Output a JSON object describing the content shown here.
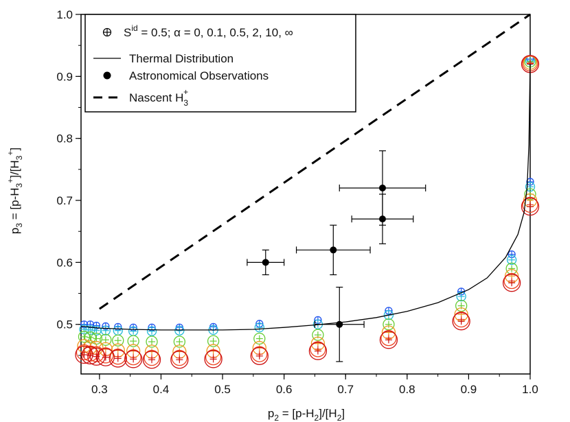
{
  "chart_data": {
    "type": "scatter",
    "xlabel": {
      "main": "p",
      "sub": "2",
      "rest": " = [p-H",
      "sub2": "2",
      "tail": "]/[H",
      "sub3": "2",
      "end": "]"
    },
    "ylabel": {
      "main": "p",
      "sub": "3",
      "rest": " = [p-H",
      "sub2": "3",
      "sup2": "+",
      "tail": "]/[H",
      "sub3": "3",
      "sup3": "+",
      "end": "]"
    },
    "xlim": [
      0.27,
      1.0
    ],
    "ylim": [
      0.42,
      1.0
    ],
    "xticks": [
      0.3,
      0.4,
      0.5,
      0.6,
      0.7,
      0.8,
      0.9,
      1.0
    ],
    "xtick_labels": [
      "0.3",
      "0.4",
      "0.5",
      "0.6",
      "0.7",
      "0.8",
      "0.9",
      "1.0"
    ],
    "yticks": [
      0.5,
      0.6,
      0.7,
      0.8,
      0.9,
      1.0
    ],
    "ytick_labels": [
      "0.5",
      "0.6",
      "0.7",
      "0.8",
      "0.9",
      "1.0"
    ],
    "legend": {
      "placement": "top-left",
      "entries": [
        {
          "kind": "circle-plus",
          "label_prefix": "S",
          "label_sup": "id",
          "label_rest": " = 0.5; α = 0, 0.1, 0.5, 2, 10, ∞"
        },
        {
          "kind": "line",
          "label": "Thermal Distribution"
        },
        {
          "kind": "dot",
          "label": "Astronomical Observations"
        },
        {
          "kind": "dashed",
          "label_prefix": "Nascent H",
          "label_sub": "3",
          "label_sup": "+"
        }
      ]
    },
    "series": [
      {
        "name": "Thermal Distribution",
        "style": "solid",
        "color": "#000000",
        "x": [
          0.27,
          0.3,
          0.35,
          0.4,
          0.45,
          0.5,
          0.55,
          0.6,
          0.65,
          0.7,
          0.75,
          0.8,
          0.85,
          0.9,
          0.93,
          0.96,
          0.98,
          0.99,
          0.995,
          0.998,
          1.0
        ],
        "y": [
          0.497,
          0.494,
          0.492,
          0.491,
          0.491,
          0.491,
          0.492,
          0.495,
          0.499,
          0.504,
          0.511,
          0.521,
          0.535,
          0.556,
          0.575,
          0.608,
          0.645,
          0.68,
          0.72,
          0.79,
          0.92
        ]
      },
      {
        "name": "Nascent H3+",
        "style": "dashed",
        "color": "#000000",
        "x": [
          0.3,
          1.0
        ],
        "y": [
          0.525,
          1.0
        ]
      },
      {
        "name": "Astronomical Observations",
        "style": "errorbar",
        "color": "#000000",
        "points": [
          {
            "x": 0.57,
            "y": 0.6,
            "xerr": 0.03,
            "yerr": 0.02
          },
          {
            "x": 0.68,
            "y": 0.62,
            "xerr": 0.06,
            "yerr": 0.04
          },
          {
            "x": 0.76,
            "y": 0.72,
            "xerr": 0.07,
            "yerr": 0.06
          },
          {
            "x": 0.76,
            "y": 0.67,
            "xerr": 0.05,
            "yerr": 0.04
          },
          {
            "x": 0.69,
            "y": 0.5,
            "xerr": 0.04,
            "yerr": 0.06
          }
        ]
      },
      {
        "name": "S_id = 0.5 model",
        "style": "circle-plus",
        "x": [
          0.275,
          0.285,
          0.295,
          0.31,
          0.33,
          0.355,
          0.385,
          0.43,
          0.485,
          0.56,
          0.655,
          0.77,
          0.888,
          0.97,
          1.0
        ],
        "alpha_labels": [
          "0",
          "0.1",
          "0.5",
          "2",
          "10",
          "∞"
        ],
        "colors": [
          "#2255ee",
          "#22b8d8",
          "#66cc33",
          "#ee9a22",
          "#ee4422",
          "#cc1111"
        ],
        "radii_px": [
          5,
          6.5,
          8,
          9.5,
          11,
          12.5
        ],
        "y_by_alpha": [
          [
            0.5,
            0.5,
            0.498,
            0.497,
            0.496,
            0.495,
            0.495,
            0.495,
            0.496,
            0.501,
            0.507,
            0.522,
            0.553,
            0.613,
            0.73
          ],
          [
            0.492,
            0.491,
            0.49,
            0.49,
            0.49,
            0.489,
            0.489,
            0.49,
            0.491,
            0.495,
            0.5,
            0.515,
            0.545,
            0.604,
            0.722
          ],
          [
            0.48,
            0.479,
            0.477,
            0.475,
            0.474,
            0.473,
            0.472,
            0.472,
            0.473,
            0.477,
            0.483,
            0.5,
            0.53,
            0.59,
            0.71
          ],
          [
            0.465,
            0.463,
            0.462,
            0.46,
            0.458,
            0.457,
            0.456,
            0.456,
            0.457,
            0.462,
            0.469,
            0.487,
            0.516,
            0.578,
            0.7
          ],
          [
            0.455,
            0.453,
            0.452,
            0.45,
            0.448,
            0.447,
            0.446,
            0.446,
            0.447,
            0.452,
            0.46,
            0.478,
            0.508,
            0.57,
            0.693
          ],
          [
            0.451,
            0.45,
            0.448,
            0.447,
            0.445,
            0.444,
            0.443,
            0.443,
            0.444,
            0.449,
            0.457,
            0.475,
            0.505,
            0.567,
            0.69
          ]
        ],
        "top_end": {
          "x": 1.0,
          "y_by_alpha": [
            0.928,
            0.926,
            0.924,
            0.922,
            0.921,
            0.92
          ]
        }
      }
    ]
  }
}
